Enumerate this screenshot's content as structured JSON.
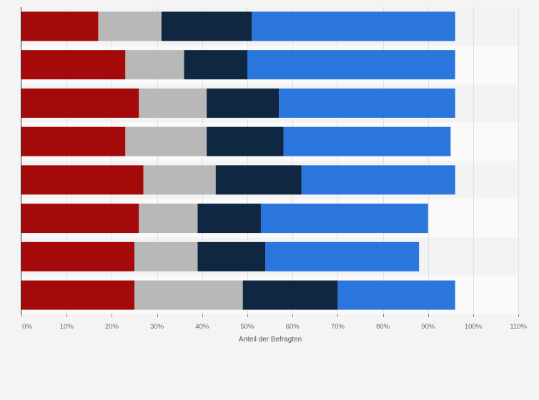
{
  "chart_data": {
    "type": "bar",
    "orientation": "horizontal",
    "stacked": true,
    "title": "",
    "xlabel": "Anteil der Befragten",
    "ylabel": "",
    "xlim": [
      0,
      110
    ],
    "x_ticks": [
      0,
      10,
      20,
      30,
      40,
      50,
      60,
      70,
      80,
      90,
      100,
      110
    ],
    "x_tick_labels": [
      "0%",
      "10%",
      "20%",
      "30%",
      "40%",
      "50%",
      "60%",
      "70%",
      "80%",
      "90%",
      "100%",
      "110%"
    ],
    "grid": true,
    "legend": "none",
    "categories": [
      "",
      "",
      "",
      "",
      "",
      "",
      "",
      ""
    ],
    "series": [
      {
        "color": "#a50a0a",
        "values": [
          17,
          23,
          26,
          23,
          27,
          26,
          25,
          25
        ]
      },
      {
        "color": "#b8b8b8",
        "values": [
          14,
          13,
          15,
          18,
          16,
          13,
          14,
          24
        ]
      },
      {
        "color": "#0f2740",
        "values": [
          20,
          14,
          16,
          17,
          19,
          14,
          15,
          21
        ]
      },
      {
        "color": "#2a76dd",
        "values": [
          45,
          46,
          39,
          37,
          34,
          37,
          34,
          26
        ]
      }
    ]
  }
}
